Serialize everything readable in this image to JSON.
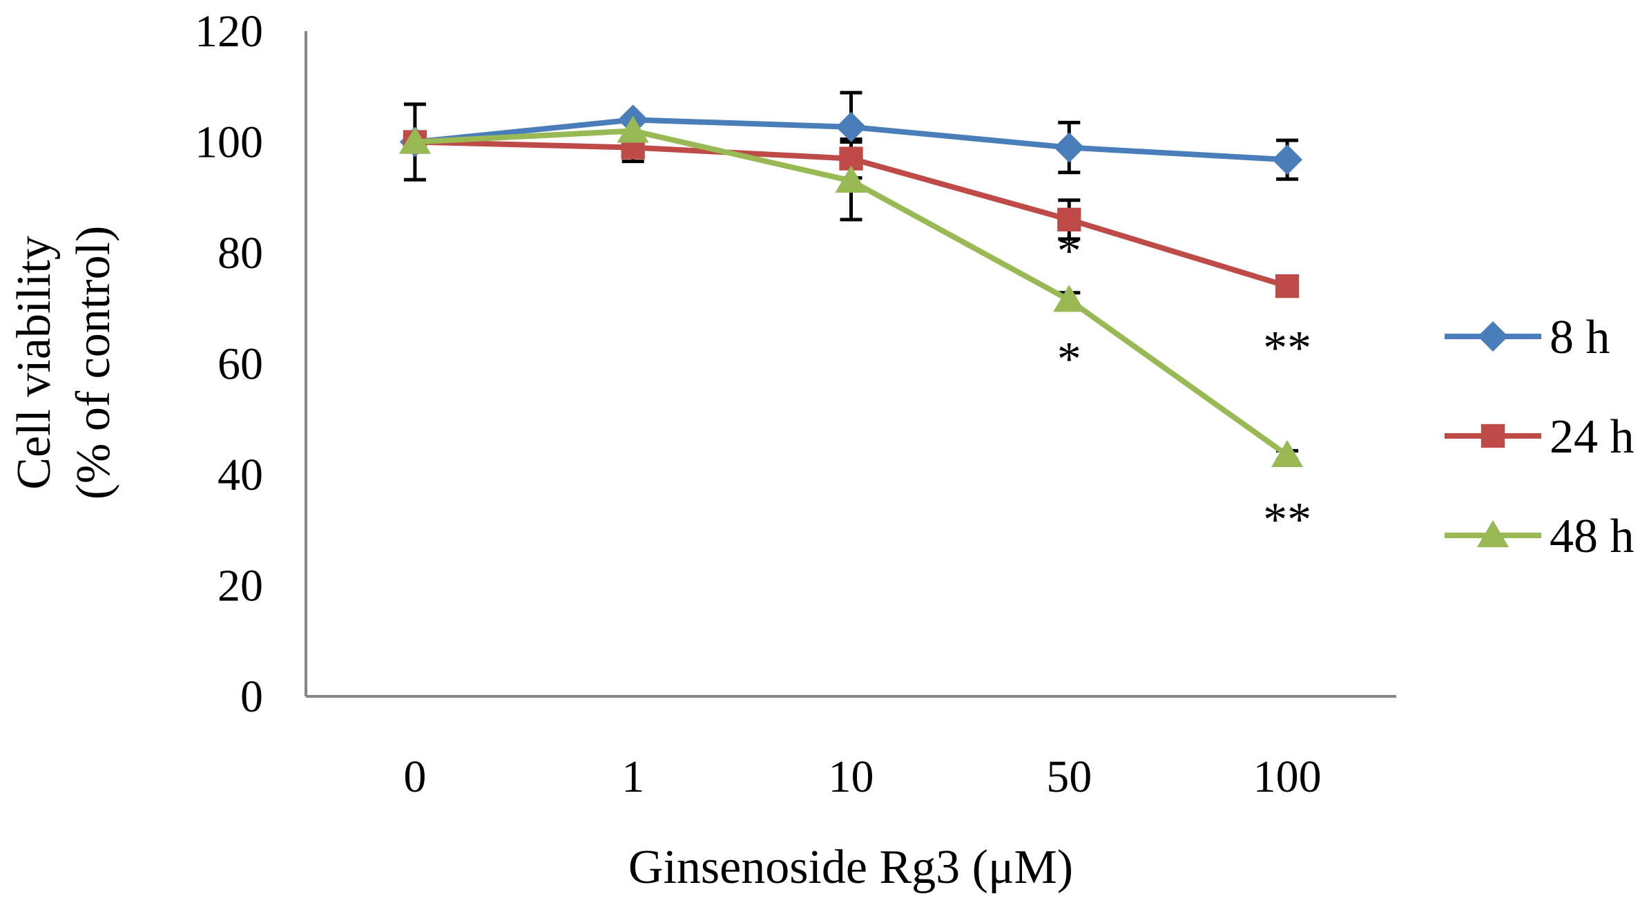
{
  "chart_data": {
    "type": "line",
    "title": "",
    "xlabel": "Ginsenoside Rg3 (μM)",
    "ylabel_line1": "Cell viability",
    "ylabel_line2": "(% of control)",
    "ylim": [
      0,
      120
    ],
    "yticks": [
      0,
      20,
      40,
      60,
      80,
      100,
      120
    ],
    "categories": [
      "0",
      "1",
      "10",
      "50",
      "100"
    ],
    "legend_position": "right",
    "grid": false,
    "series": [
      {
        "name": "8 h",
        "color": "#4a7ebb",
        "marker": "diamond",
        "values": [
          100,
          104,
          102.7,
          99,
          96.8
        ],
        "errors": [
          6.8,
          0,
          6.2,
          4.5,
          3.5
        ]
      },
      {
        "name": "24 h",
        "color": "#be4b48",
        "marker": "square",
        "values": [
          100,
          99,
          97,
          86,
          74
        ],
        "errors": [
          0,
          2.5,
          3.5,
          3.5,
          0
        ]
      },
      {
        "name": "48 h",
        "color": "#98b954",
        "marker": "triangle",
        "values": [
          100,
          102,
          93,
          71.5,
          43.5
        ],
        "errors": [
          0,
          0,
          7,
          1.3,
          0.8
        ]
      }
    ],
    "annotations": [
      {
        "category": "50",
        "value": 80.5,
        "text": "*"
      },
      {
        "category": "50",
        "value": 61,
        "text": "*"
      },
      {
        "category": "100",
        "value": 63,
        "text": "**"
      },
      {
        "category": "100",
        "value": 32,
        "text": "**"
      }
    ]
  }
}
